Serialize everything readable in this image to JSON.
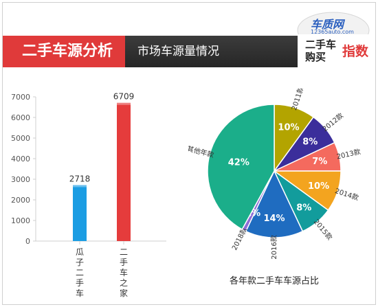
{
  "header": {
    "title": "二手车源分析",
    "subtitle": "市场车源量情况"
  },
  "brand": {
    "site": "车质网",
    "url": "12365auto.com",
    "line1": "二手车",
    "line2": "购买",
    "line3": "指数"
  },
  "chart_data": [
    {
      "type": "bar",
      "title": "",
      "xlabel": "",
      "ylabel": "",
      "categories": [
        "瓜子二手车",
        "二手车之家"
      ],
      "values": [
        2718,
        6709
      ],
      "data_labels": [
        "2718",
        "6709"
      ],
      "colors": [
        "#1b9de3",
        "#e53c3c"
      ],
      "ylim": [
        0,
        7000
      ],
      "yticks": [
        0,
        1000,
        2000,
        3000,
        4000,
        5000,
        6000,
        7000
      ],
      "grid": false
    },
    {
      "type": "pie",
      "title": "各年款二手车车源占比",
      "slices": [
        {
          "name": "2011款",
          "value": 10,
          "label": "10%",
          "color": "#b3a400"
        },
        {
          "name": "2012款",
          "value": 8,
          "label": "8%",
          "color": "#3b2e9b"
        },
        {
          "name": "2013款",
          "value": 7,
          "label": "7%",
          "color": "#f46a5e"
        },
        {
          "name": "2014款",
          "value": 10,
          "label": "10%",
          "color": "#f3a41f"
        },
        {
          "name": "2015款",
          "value": 8,
          "label": "8%",
          "color": "#129c9c"
        },
        {
          "name": "2016款",
          "value": 14,
          "label": "14%",
          "color": "#1f6cc0"
        },
        {
          "name": "2018款",
          "value": 1,
          "label": "1%",
          "color": "#8e6bd6"
        },
        {
          "name": "其他年款",
          "value": 42,
          "label": "42%",
          "color": "#1bae8a"
        }
      ]
    }
  ]
}
